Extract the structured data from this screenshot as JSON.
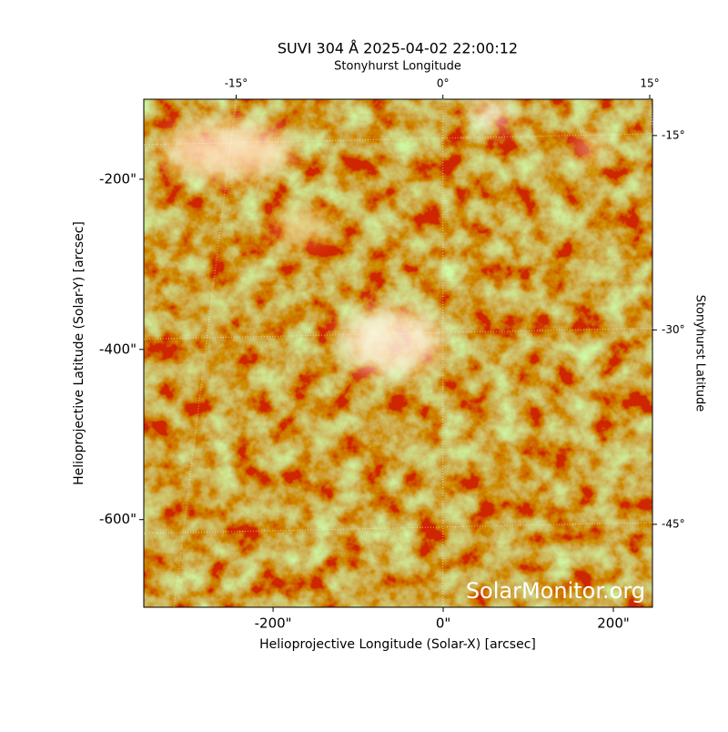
{
  "chart_data": {
    "type": "image",
    "title": "SUVI 304 Å 2025-04-02 22:00:12",
    "xlabel": "Helioprojective Longitude (Solar-X) [arcsec]",
    "ylabel": "Helioprojective Latitude (Solar-Y) [arcsec]",
    "x2label": "Stonyhurst Longitude",
    "y2label": "Stonyhurst Latitude",
    "watermark": "SolarMonitor.org",
    "xlim": [
      -352,
      246
    ],
    "ylim": [
      -703,
      -106
    ],
    "xticks": [
      {
        "value": -200,
        "label": "-200\""
      },
      {
        "value": 0,
        "label": "0\""
      },
      {
        "value": 200,
        "label": "200\""
      }
    ],
    "yticks": [
      {
        "value": -200,
        "label": "-200\""
      },
      {
        "value": -400,
        "label": "-400\""
      },
      {
        "value": -600,
        "label": "-600\""
      }
    ],
    "x2lim": [
      -21.7,
      15.2
    ],
    "x2ticks": [
      {
        "value": -15,
        "label": "-15°"
      },
      {
        "value": 0,
        "label": "0°"
      },
      {
        "value": 15,
        "label": "15°"
      }
    ],
    "y2lim": [
      -51.4,
      -12.2
    ],
    "y2ticks": [
      {
        "value": -15,
        "label": "-15°"
      },
      {
        "value": -30,
        "label": "-30°"
      },
      {
        "value": -45,
        "label": "-45°"
      }
    ],
    "grid": true
  }
}
